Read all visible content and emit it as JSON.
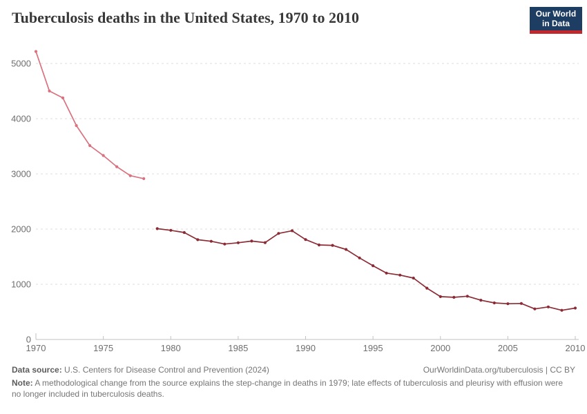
{
  "header": {
    "title": "Tuberculosis deaths in the United States, 1970 to 2010",
    "logo": {
      "line1": "Our World",
      "line2": "in Data"
    }
  },
  "chart_data": {
    "type": "line",
    "title": "Tuberculosis deaths in the United States, 1970 to 2010",
    "xlabel": "",
    "ylabel": "",
    "xlim": [
      1970,
      2010
    ],
    "ylim": [
      0,
      5000
    ],
    "yticks": [
      0,
      1000,
      2000,
      3000,
      4000,
      5000
    ],
    "xticks": [
      1970,
      1975,
      1980,
      1985,
      1990,
      1995,
      2000,
      2005,
      2010
    ],
    "grid": "horizontal-dashed",
    "legend": "none",
    "series": [
      {
        "name": "1970-1978",
        "color": "#d9717e",
        "x": [
          1970,
          1971,
          1972,
          1973,
          1974,
          1975,
          1976,
          1977,
          1978
        ],
        "values": [
          5217,
          4501,
          4376,
          3875,
          3513,
          3333,
          3130,
          2968,
          2914
        ]
      },
      {
        "name": "1979-2010",
        "color": "#8b2b35",
        "x": [
          1979,
          1980,
          1981,
          1982,
          1983,
          1984,
          1985,
          1986,
          1987,
          1988,
          1989,
          1990,
          1991,
          1992,
          1993,
          1994,
          1995,
          1996,
          1997,
          1998,
          1999,
          2000,
          2001,
          2002,
          2003,
          2004,
          2005,
          2006,
          2007,
          2008,
          2009,
          2010
        ],
        "values": [
          2007,
          1978,
          1937,
          1807,
          1779,
          1729,
          1752,
          1782,
          1755,
          1921,
          1970,
          1810,
          1713,
          1705,
          1631,
          1478,
          1336,
          1202,
          1166,
          1112,
          930,
          776,
          764,
          784,
          711,
          662,
          648,
          652,
          554,
          590,
          529,
          569
        ]
      }
    ]
  },
  "colors": {
    "line_light": "#d9717e",
    "line_dark": "#8b2b35",
    "grid": "#dedede",
    "axis": "#c2c2c2",
    "tick_text": "#6e6e6e",
    "title_text": "#383838",
    "footer_text": "#757575",
    "logo_navy": "#1d3d63",
    "logo_red": "#c0282d"
  },
  "footer": {
    "data_source_label": "Data source:",
    "data_source": "U.S. Centers for Disease Control and Prevention (2024)",
    "attribution": "OurWorldinData.org/tuberculosis | CC BY",
    "note_label": "Note:",
    "note": "A methodological change from the source explains the step-change in deaths in 1979; late effects of tuberculosis and pleurisy with effusion were no longer included in tuberculosis deaths."
  }
}
